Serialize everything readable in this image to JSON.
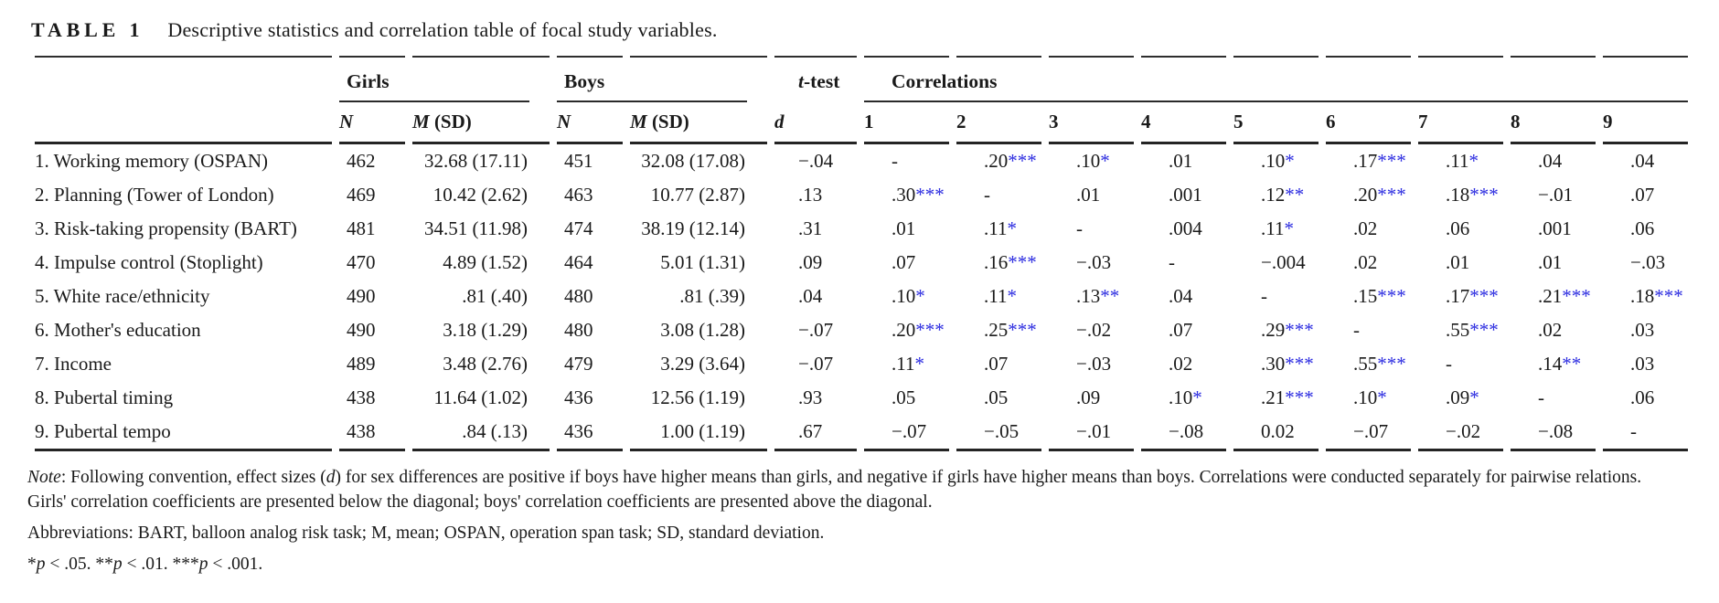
{
  "title": {
    "label": "TABLE 1",
    "caption": "Descriptive statistics and correlation table of focal study variables."
  },
  "colors": {
    "significance_star": "#2b2be0",
    "text": "#1a1a1a",
    "rule": "#2a2a2a"
  },
  "table": {
    "groups": {
      "girls": "Girls",
      "boys": "Boys",
      "ttest_t": "t",
      "ttest_rest": "-test",
      "correlations": "Correlations"
    },
    "subheaders": {
      "n": "N",
      "m": "M",
      "sd": " (SD)",
      "d": "d",
      "corr_numbers": [
        "1",
        "2",
        "3",
        "4",
        "5",
        "6",
        "7",
        "8",
        "9"
      ]
    },
    "rows": [
      {
        "variable": "1. Working memory (OSPAN)",
        "g_n": "462",
        "g_msd": "32.68 (17.11)",
        "b_n": "451",
        "b_msd": "32.08 (17.08)",
        "d": "−.04",
        "corr": [
          "-",
          ".20***",
          ".10*",
          ".01",
          ".10*",
          ".17***",
          ".11*",
          ".04",
          ".04"
        ]
      },
      {
        "variable": "2. Planning (Tower of London)",
        "g_n": "469",
        "g_msd": "10.42 (2.62)",
        "b_n": "463",
        "b_msd": "10.77 (2.87)",
        "d": ".13",
        "corr": [
          ".30***",
          "-",
          ".01",
          ".001",
          ".12**",
          ".20***",
          ".18***",
          "−.01",
          ".07"
        ]
      },
      {
        "variable": "3. Risk-taking propensity (BART)",
        "g_n": "481",
        "g_msd": "34.51 (11.98)",
        "b_n": "474",
        "b_msd": "38.19 (12.14)",
        "d": ".31",
        "corr": [
          ".01",
          ".11*",
          "-",
          ".004",
          ".11*",
          ".02",
          ".06",
          ".001",
          ".06"
        ]
      },
      {
        "variable": "4. Impulse control (Stoplight)",
        "g_n": "470",
        "g_msd": "4.89 (1.52)",
        "b_n": "464",
        "b_msd": "5.01 (1.31)",
        "d": ".09",
        "corr": [
          ".07",
          ".16***",
          "−.03",
          "-",
          "−.004",
          ".02",
          ".01",
          ".01",
          "−.03"
        ]
      },
      {
        "variable": "5. White race/ethnicity",
        "g_n": "490",
        "g_msd": ".81 (.40)",
        "b_n": "480",
        "b_msd": ".81 (.39)",
        "d": ".04",
        "corr": [
          ".10*",
          ".11*",
          ".13**",
          ".04",
          "-",
          ".15***",
          ".17***",
          ".21***",
          ".18***"
        ]
      },
      {
        "variable": "6. Mother's education",
        "g_n": "490",
        "g_msd": "3.18 (1.29)",
        "b_n": "480",
        "b_msd": "3.08 (1.28)",
        "d": "−.07",
        "corr": [
          ".20***",
          ".25***",
          "−.02",
          ".07",
          ".29***",
          "-",
          ".55***",
          ".02",
          ".03"
        ]
      },
      {
        "variable": "7. Income",
        "g_n": "489",
        "g_msd": "3.48 (2.76)",
        "b_n": "479",
        "b_msd": "3.29 (3.64)",
        "d": "−.07",
        "corr": [
          ".11*",
          ".07",
          "−.03",
          ".02",
          ".30***",
          ".55***",
          "-",
          ".14**",
          ".03"
        ]
      },
      {
        "variable": "8. Pubertal timing",
        "g_n": "438",
        "g_msd": "11.64 (1.02)",
        "b_n": "436",
        "b_msd": "12.56 (1.19)",
        "d": ".93",
        "corr": [
          ".05",
          ".05",
          ".09",
          ".10*",
          ".21***",
          ".10*",
          ".09*",
          "-",
          ".06"
        ]
      },
      {
        "variable": "9. Pubertal tempo",
        "g_n": "438",
        "g_msd": ".84 (.13)",
        "b_n": "436",
        "b_msd": "1.00 (1.19)",
        "d": ".67",
        "corr": [
          "−.07",
          "−.05",
          "−.01",
          "−.08",
          "0.02",
          "−.07",
          "−.02",
          "−.08",
          "-"
        ]
      }
    ]
  },
  "notes": {
    "note_label": "Note",
    "note_pre_d": ": Following convention, effect sizes (",
    "note_d": "d",
    "note_post_d": ") for sex differences are positive if boys have higher means than girls, and negative if girls have higher means than boys. Correlations were conducted separately for pairwise relations. Girls' correlation coefficients are presented below the diagonal; boys' correlation coefficients are presented above the diagonal.",
    "abbreviations": "Abbreviations: BART, balloon analog risk task; M, mean; OSPAN, operation span task; SD, standard deviation.",
    "sig": {
      "p": "p",
      "s1": "*",
      "v1": " < .05. ",
      "s2": "**",
      "v2": " < .01. ",
      "s3": "***",
      "v3": " < .001."
    }
  }
}
